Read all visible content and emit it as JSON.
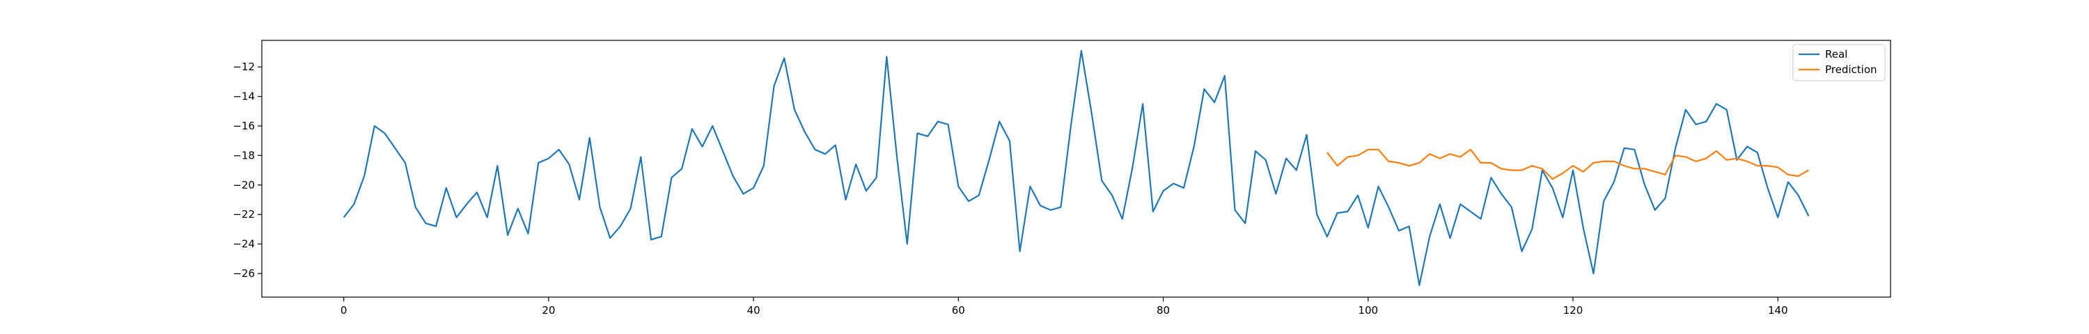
{
  "chart_data": {
    "type": "line",
    "title": "",
    "xlabel": "",
    "ylabel": "",
    "xlim": [
      -8,
      151
    ],
    "ylim": [
      -27.6,
      -10.2
    ],
    "grid": false,
    "legend_position": "top-right",
    "x_ticks": [
      0,
      20,
      40,
      60,
      80,
      100,
      120,
      140
    ],
    "x_tick_labels": [
      "0",
      "20",
      "40",
      "60",
      "80",
      "100",
      "120",
      "140"
    ],
    "y_ticks": [
      -26,
      -24,
      -22,
      -20,
      -18,
      -16,
      -14,
      -12
    ],
    "y_tick_labels": [
      "−26",
      "−24",
      "−22",
      "−20",
      "−18",
      "−16",
      "−14",
      "−12"
    ],
    "series": [
      {
        "name": "Real",
        "color": "#1f77b4",
        "x_start": 0,
        "values": [
          -22.2,
          -21.3,
          -19.4,
          -16.0,
          -16.5,
          -17.5,
          -18.5,
          -21.5,
          -22.6,
          -22.8,
          -20.2,
          -22.2,
          -21.3,
          -20.5,
          -22.2,
          -18.7,
          -23.4,
          -21.6,
          -23.3,
          -18.5,
          -18.2,
          -17.6,
          -18.6,
          -21.0,
          -16.8,
          -21.5,
          -23.6,
          -22.8,
          -21.6,
          -18.1,
          -23.7,
          -23.5,
          -19.5,
          -18.9,
          -16.2,
          -17.4,
          -16.0,
          -17.7,
          -19.4,
          -20.6,
          -20.2,
          -18.7,
          -13.3,
          -11.4,
          -14.9,
          -16.4,
          -17.6,
          -17.9,
          -17.3,
          -21.0,
          -18.6,
          -20.4,
          -19.5,
          -11.3,
          -18.1,
          -24.0,
          -16.5,
          -16.7,
          -15.7,
          -15.9,
          -20.1,
          -21.1,
          -20.7,
          -18.3,
          -15.7,
          -17.0,
          -24.5,
          -20.1,
          -21.4,
          -21.7,
          -21.5,
          -15.9,
          -10.9,
          -15.1,
          -19.7,
          -20.7,
          -22.3,
          -18.8,
          -14.5,
          -21.8,
          -20.4,
          -19.9,
          -20.2,
          -17.4,
          -13.5,
          -14.4,
          -12.6,
          -21.7,
          -22.6,
          -17.7,
          -18.3,
          -20.6,
          -18.2,
          -19.0,
          -16.6,
          -22.0,
          -23.5,
          -21.9,
          -21.8,
          -20.7,
          -22.9,
          -20.1,
          -21.5,
          -23.1,
          -22.8,
          -26.8,
          -23.5,
          -21.3,
          -23.6,
          -21.3,
          -21.8,
          -22.3,
          -19.5,
          -20.6,
          -21.5,
          -24.5,
          -23.0,
          -19.0,
          -20.2,
          -22.2,
          -19.0,
          -22.9,
          -26.0,
          -21.1,
          -19.8,
          -17.5,
          -17.6,
          -20.0,
          -21.7,
          -20.9,
          -17.5,
          -14.9,
          -15.9,
          -15.7,
          -14.5,
          -14.9,
          -18.3,
          -17.4,
          -17.8,
          -20.2,
          -22.2,
          -19.8,
          -20.7,
          -22.1
        ]
      },
      {
        "name": "Prediction",
        "color": "#ff7f0e",
        "x_start": 96,
        "values": [
          -17.8,
          -18.7,
          -18.1,
          -18.0,
          -17.6,
          -17.6,
          -18.4,
          -18.5,
          -18.7,
          -18.5,
          -17.9,
          -18.2,
          -17.9,
          -18.1,
          -17.6,
          -18.5,
          -18.5,
          -18.9,
          -19.0,
          -19.0,
          -18.7,
          -18.9,
          -19.6,
          -19.2,
          -18.7,
          -19.1,
          -18.5,
          -18.4,
          -18.4,
          -18.7,
          -18.9,
          -18.9,
          -19.1,
          -19.3,
          -18.0,
          -18.1,
          -18.4,
          -18.2,
          -17.7,
          -18.3,
          -18.2,
          -18.4,
          -18.7,
          -18.7,
          -18.8,
          -19.3,
          -19.4,
          -19.0
        ]
      }
    ]
  }
}
